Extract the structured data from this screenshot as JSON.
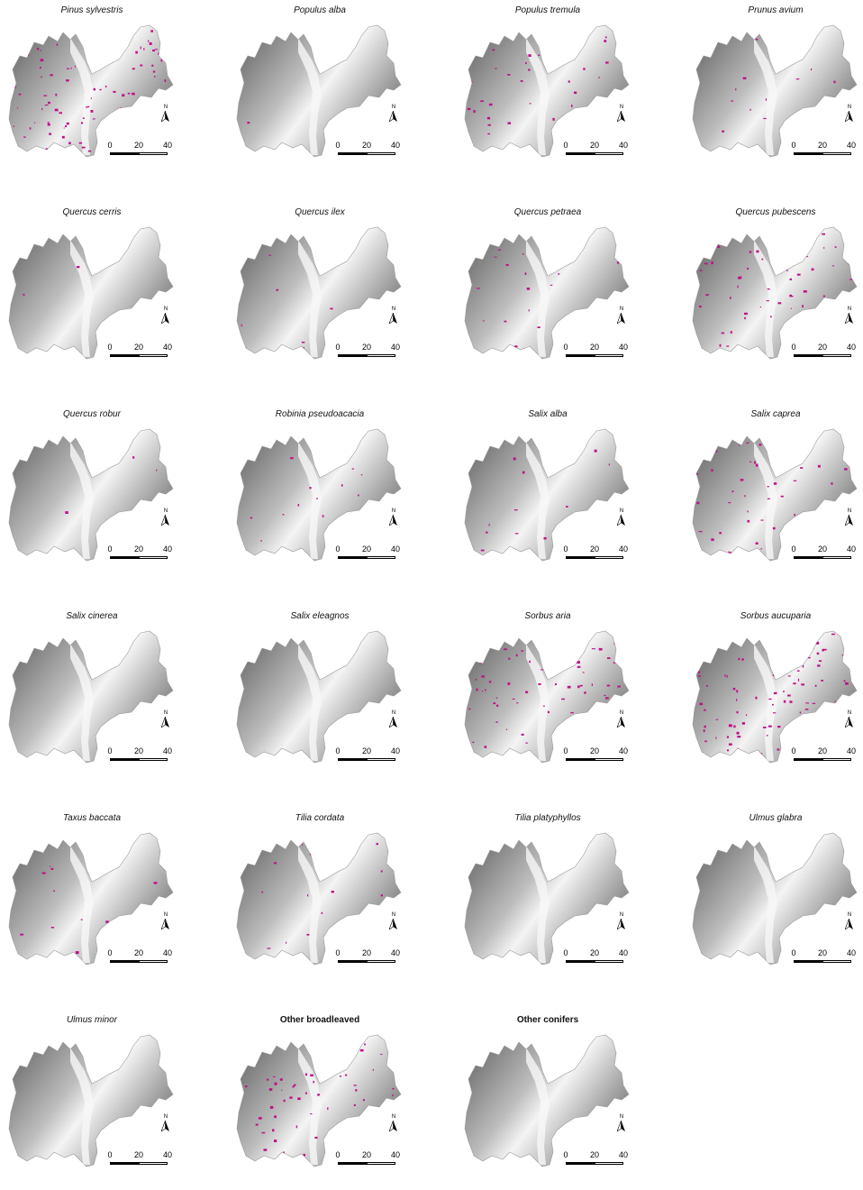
{
  "colors": {
    "presence": "#c0108a",
    "relief_dark": "#5a5a5a",
    "relief_light": "#f4f4f4"
  },
  "scale_labels": [
    "0",
    "20",
    "40"
  ],
  "north_label": "N",
  "panels": [
    {
      "title": "Pinus sylvestris",
      "title_style": "italic",
      "coverage": 0.9
    },
    {
      "title": "Populus alba",
      "title_style": "italic",
      "coverage": 0.01
    },
    {
      "title": "Populus tremula",
      "title_style": "italic",
      "coverage": 0.3
    },
    {
      "title": "Prunus avium",
      "title_style": "italic",
      "coverage": 0.12
    },
    {
      "title": "Quercus cerris",
      "title_style": "italic",
      "coverage": 0.03
    },
    {
      "title": "Quercus ilex",
      "title_style": "italic",
      "coverage": 0.06
    },
    {
      "title": "Quercus petraea",
      "title_style": "italic",
      "coverage": 0.25
    },
    {
      "title": "Quercus pubescens",
      "title_style": "italic",
      "coverage": 0.55
    },
    {
      "title": "Quercus robur",
      "title_style": "italic",
      "coverage": 0.02
    },
    {
      "title": "Robinia pseudoacacia",
      "title_style": "italic",
      "coverage": 0.18
    },
    {
      "title": "Salix alba",
      "title_style": "italic",
      "coverage": 0.15
    },
    {
      "title": "Salix caprea",
      "title_style": "italic",
      "coverage": 0.45
    },
    {
      "title": "Salix cinerea",
      "title_style": "italic",
      "coverage": 0.0
    },
    {
      "title": "Salix eleagnos",
      "title_style": "italic",
      "coverage": 0.0
    },
    {
      "title": "Sorbus aria",
      "title_style": "italic",
      "coverage": 0.6
    },
    {
      "title": "Sorbus aucuparia",
      "title_style": "italic",
      "coverage": 0.75
    },
    {
      "title": "Taxus baccata",
      "title_style": "italic",
      "coverage": 0.1
    },
    {
      "title": "Tilia cordata",
      "title_style": "italic",
      "coverage": 0.15
    },
    {
      "title": "Tilia platyphyllos",
      "title_style": "italic",
      "coverage": 0.0
    },
    {
      "title": "Ulmus glabra",
      "title_style": "italic",
      "coverage": 0.0
    },
    {
      "title": "Ulmus minor",
      "title_style": "italic",
      "coverage": 0.0
    },
    {
      "title": "Other broadleaved",
      "title_style": "bold",
      "coverage": 0.45
    },
    {
      "title": "Other conifers",
      "title_style": "bold",
      "coverage": 0.0
    }
  ]
}
